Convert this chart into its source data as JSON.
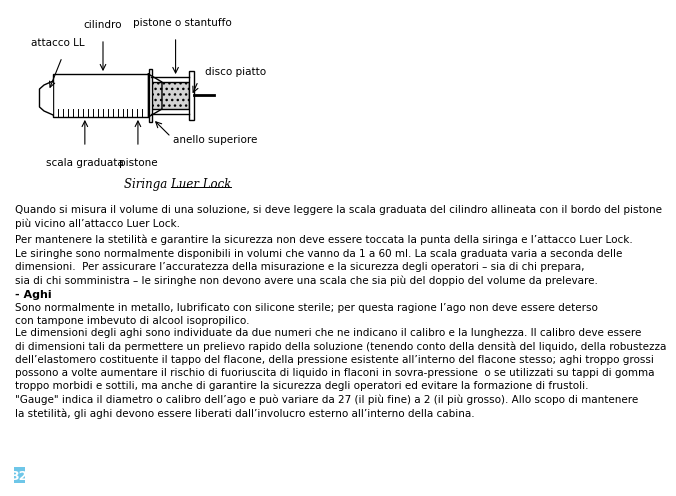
{
  "bg_color": "#ffffff",
  "page_number": "32",
  "page_num_bg": "#6ec6e8",
  "page_num_color": "#ffffff",
  "caption": "Siringa Luer Lock",
  "heading_aghi": "- Aghi",
  "label_cilindro": "cilindro",
  "label_attacco": "attacco LL",
  "label_pistone_stantuffo": "pistone o stantuffo",
  "label_disco_piatto": "disco piatto",
  "label_anello": "anello superiore",
  "label_scala": "scala graduata",
  "label_pistone": "pistone",
  "line_color": "#000000",
  "text_color": "#000000",
  "font_size_body": 7.5,
  "font_size_label": 7.5,
  "font_size_caption": 8.5,
  "font_size_heading": 8.0
}
